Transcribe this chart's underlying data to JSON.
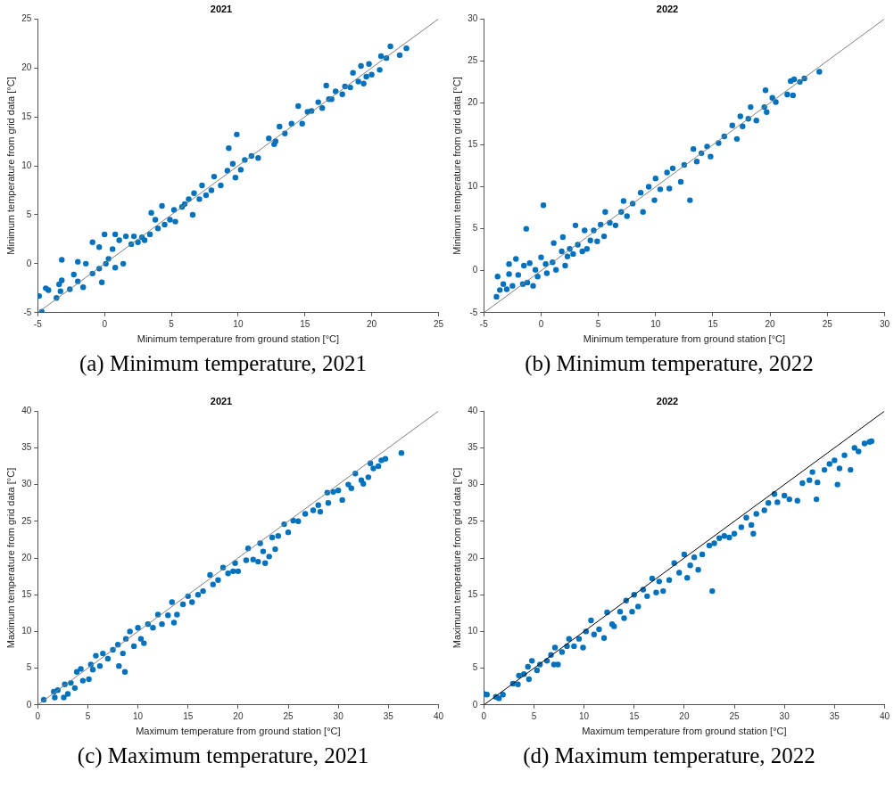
{
  "chart_data": [
    {
      "type": "scatter",
      "title": "2021",
      "xlabel": "Minimum temperature from ground station [°C]",
      "ylabel": "Minimum temperature from grid data [°C]",
      "annotations": [
        "(a) Minimum temperature, 2021"
      ],
      "xlim": [
        -5,
        25
      ],
      "ylim": [
        -5,
        25
      ],
      "xticks": [
        -5,
        0,
        5,
        10,
        15,
        20,
        25
      ],
      "yticks": [
        -5,
        0,
        5,
        10,
        15,
        20,
        25
      ],
      "grid": false,
      "legend": false,
      "series": [
        {
          "marker": "circle",
          "color": "#0072bd",
          "x": [
            -4.9,
            -4.7,
            -4.4,
            -4.2,
            -3.6,
            -3.4,
            -3.2,
            -3.2,
            -3.3,
            -2.6,
            -2.3,
            -2.0,
            -2.0,
            -1.6,
            -1.4,
            -0.9,
            -0.9,
            -0.4,
            -0.4,
            -0.2,
            0.0,
            0.1,
            0.3,
            0.6,
            0.8,
            0.8,
            1.1,
            1.4,
            1.6,
            2.0,
            2.2,
            2.5,
            3.0,
            3.4,
            3.5,
            3.8,
            4.0,
            4.3,
            4.5,
            4.9,
            5.2,
            5.3,
            5.8,
            6.3,
            6.6,
            6.7,
            7.1,
            7.3,
            7.6,
            8.0,
            8.2,
            8.7,
            9.2,
            9.3,
            9.6,
            9.8,
            9.9,
            10.2,
            10.5,
            11.0,
            11.5,
            12.3,
            12.7,
            13.1,
            13.5,
            14.0,
            14.5,
            14.8,
            15.2,
            15.5,
            16.0,
            16.3,
            16.6,
            16.8,
            17.3,
            17.8,
            18.4,
            18.6,
            19.0,
            19.2,
            19.4,
            19.8,
            20.0,
            20.6,
            20.7,
            21.1,
            21.4,
            22.1,
            22.6,
            18.0,
            17.0,
            6.0,
            2.8,
            12.8,
            19.6
          ],
          "values": [
            -3.3,
            -4.9,
            -2.5,
            -2.7,
            -3.5,
            -2.1,
            -1.7,
            0.4,
            -2.8,
            -2.6,
            -1.1,
            0.2,
            -1.8,
            -2.4,
            0.0,
            -1.0,
            2.2,
            -0.5,
            1.7,
            -1.9,
            3.0,
            0.0,
            0.5,
            1.5,
            3.0,
            -0.4,
            2.4,
            0.0,
            2.8,
            2.0,
            2.8,
            2.2,
            2.4,
            3.0,
            5.2,
            4.5,
            3.6,
            5.9,
            4.0,
            4.5,
            5.5,
            4.3,
            5.8,
            6.6,
            5.0,
            7.2,
            6.6,
            8.0,
            7.0,
            7.5,
            8.9,
            8.0,
            9.5,
            11.8,
            10.2,
            8.8,
            13.2,
            9.6,
            10.6,
            11.0,
            10.8,
            12.8,
            12.2,
            14.0,
            13.3,
            14.3,
            16.1,
            14.3,
            15.5,
            15.6,
            16.5,
            15.9,
            18.2,
            16.8,
            17.6,
            17.3,
            18.0,
            19.5,
            18.6,
            20.2,
            18.4,
            20.4,
            19.3,
            19.8,
            21.2,
            21.0,
            22.2,
            21.3,
            22.0,
            18.1,
            16.8,
            6.1,
            2.7,
            12.5,
            19.1
          ]
        },
        {
          "type": "line",
          "marker": "none",
          "color": "#808080",
          "x": [
            -5,
            25
          ],
          "values": [
            -5,
            25
          ]
        }
      ]
    },
    {
      "type": "scatter",
      "title": "2022",
      "xlabel": "Minimum temperature from ground station [°C]",
      "ylabel": "Minimum temperature from grid data [°C]",
      "annotations": [
        "(b) Minimum temperature, 2022"
      ],
      "xlim": [
        -5,
        30
      ],
      "ylim": [
        -5,
        30
      ],
      "xticks": [
        -5,
        0,
        5,
        10,
        15,
        20,
        25,
        30
      ],
      "yticks": [
        -5,
        0,
        5,
        10,
        15,
        20,
        25,
        30
      ],
      "grid": false,
      "legend": false,
      "series": [
        {
          "marker": "circle",
          "color": "#0072bd",
          "x": [
            -3.9,
            -3.8,
            -3.6,
            -3.3,
            -3.0,
            -2.8,
            -2.8,
            -2.5,
            -2.2,
            -2.0,
            -1.6,
            -1.5,
            -1.3,
            -1.2,
            -1.0,
            -0.7,
            -0.5,
            -0.3,
            0.0,
            0.2,
            0.4,
            0.5,
            1.0,
            1.1,
            1.3,
            1.8,
            1.9,
            2.1,
            2.3,
            2.5,
            2.8,
            3.0,
            3.2,
            3.6,
            3.8,
            4.0,
            4.3,
            4.6,
            4.9,
            5.2,
            5.5,
            5.6,
            6.0,
            6.5,
            7.0,
            7.2,
            7.5,
            8.0,
            8.7,
            8.9,
            9.4,
            9.9,
            10.0,
            10.4,
            11.0,
            11.2,
            11.5,
            12.2,
            12.5,
            13.0,
            13.3,
            13.6,
            14.0,
            14.5,
            14.8,
            15.5,
            16.0,
            16.7,
            17.1,
            17.4,
            17.6,
            18.1,
            18.3,
            18.8,
            19.5,
            19.7,
            20.2,
            20.5,
            21.5,
            21.8,
            22.0,
            22.1,
            22.6,
            23.0,
            24.3,
            19.6
          ],
          "values": [
            -3.1,
            -0.7,
            -2.3,
            -1.6,
            -2.2,
            0.8,
            -0.4,
            -1.8,
            1.4,
            -0.5,
            -1.6,
            0.6,
            5.0,
            -1.4,
            0.9,
            -1.8,
            0.1,
            -0.7,
            1.6,
            7.8,
            0.8,
            -0.3,
            1.0,
            3.3,
            0.1,
            2.3,
            4.0,
            0.6,
            1.7,
            2.6,
            2.0,
            5.4,
            3.1,
            2.3,
            4.8,
            2.6,
            3.6,
            4.8,
            3.5,
            5.5,
            4.1,
            7.0,
            5.7,
            5.4,
            7.0,
            8.3,
            6.5,
            8.0,
            9.3,
            7.0,
            10.0,
            8.4,
            11.0,
            9.7,
            11.7,
            9.8,
            12.2,
            10.6,
            12.6,
            8.4,
            14.5,
            13.0,
            14.0,
            14.8,
            13.6,
            15.2,
            16.0,
            17.3,
            15.7,
            18.4,
            17.2,
            18.1,
            19.5,
            17.9,
            19.5,
            18.9,
            20.6,
            20.1,
            21.0,
            22.6,
            20.9,
            22.8,
            22.5,
            22.9,
            23.7,
            21.5
          ]
        },
        {
          "type": "line",
          "marker": "none",
          "color": "#808080",
          "x": [
            -5,
            30
          ],
          "values": [
            -5,
            30
          ]
        }
      ]
    },
    {
      "type": "scatter",
      "title": "2021",
      "xlabel": "Maximum temperature from ground station [°C]",
      "ylabel": "Maximum temperature from grid data [°C]",
      "annotations": [
        "(c) Maximum temperature, 2021"
      ],
      "xlim": [
        0,
        40
      ],
      "ylim": [
        0,
        40
      ],
      "xticks": [
        0,
        5,
        10,
        15,
        20,
        25,
        30,
        35,
        40
      ],
      "yticks": [
        0,
        5,
        10,
        15,
        20,
        25,
        30,
        35,
        40
      ],
      "grid": false,
      "legend": false,
      "series": [
        {
          "marker": "circle",
          "color": "#0072bd",
          "x": [
            0.6,
            1.6,
            1.7,
            2.0,
            2.6,
            2.7,
            3.0,
            3.3,
            3.7,
            3.9,
            4.3,
            4.5,
            5.1,
            5.3,
            5.5,
            5.8,
            6.2,
            6.5,
            7.0,
            7.5,
            8.0,
            8.1,
            8.5,
            8.7,
            8.8,
            9.2,
            9.6,
            10.0,
            10.3,
            10.6,
            11.0,
            11.5,
            12.0,
            12.4,
            13.0,
            13.4,
            13.6,
            13.9,
            14.5,
            15.0,
            15.4,
            16.0,
            16.5,
            17.2,
            17.5,
            18.0,
            18.5,
            19.0,
            19.5,
            19.7,
            20.0,
            20.8,
            21.0,
            21.5,
            22.0,
            22.2,
            22.5,
            22.7,
            23.1,
            23.4,
            23.7,
            24.0,
            24.6,
            25.0,
            25.5,
            26.0,
            26.7,
            27.5,
            28.0,
            28.2,
            28.9,
            29.0,
            29.5,
            30.0,
            30.4,
            31.0,
            31.3,
            31.7,
            32.3,
            32.5,
            33.0,
            33.2,
            33.5,
            34.0,
            34.3,
            34.7,
            36.3
          ],
          "values": [
            0.7,
            1.8,
            1.0,
            2.0,
            1.0,
            2.8,
            1.5,
            3.0,
            2.3,
            4.5,
            4.9,
            3.3,
            3.5,
            5.5,
            4.8,
            6.7,
            5.3,
            7.0,
            6.3,
            7.5,
            8.2,
            5.3,
            7.0,
            4.5,
            9.0,
            10.0,
            8.0,
            10.5,
            9.0,
            8.4,
            11.0,
            10.5,
            12.3,
            11.0,
            12.2,
            14.0,
            11.2,
            12.3,
            13.7,
            14.8,
            14.0,
            15.0,
            15.5,
            17.7,
            16.4,
            17.0,
            18.7,
            17.9,
            18.2,
            19.3,
            18.2,
            19.7,
            21.3,
            19.8,
            19.5,
            22.0,
            20.9,
            19.3,
            20.2,
            22.8,
            21.2,
            23.0,
            24.6,
            23.5,
            25.1,
            25.0,
            26.0,
            26.5,
            27.2,
            26.3,
            28.9,
            27.5,
            29.0,
            29.2,
            27.9,
            30.0,
            29.5,
            31.5,
            30.6,
            30.1,
            31.0,
            32.9,
            32.2,
            32.5,
            33.3,
            33.5,
            34.3
          ]
        },
        {
          "type": "line",
          "marker": "none",
          "color": "#808080",
          "x": [
            0,
            40
          ],
          "values": [
            0,
            40
          ]
        }
      ]
    },
    {
      "type": "scatter",
      "title": "2022",
      "xlabel": "Maximum temperature from ground station [°C]",
      "ylabel": "Maximum temperature from grid data [°C]",
      "annotations": [
        "(d) Maximum temperature, 2022"
      ],
      "xlim": [
        0,
        40
      ],
      "ylim": [
        0,
        40
      ],
      "xticks": [
        0,
        5,
        10,
        15,
        20,
        25,
        30,
        35,
        40
      ],
      "yticks": [
        0,
        5,
        10,
        15,
        20,
        25,
        30,
        35,
        40
      ],
      "grid": false,
      "legend": false,
      "series": [
        {
          "marker": "circle",
          "color": "#0072bd",
          "x": [
            0.0,
            0.3,
            1.2,
            1.5,
            1.9,
            2.9,
            3.4,
            3.5,
            4.0,
            4.4,
            4.5,
            4.8,
            5.3,
            5.6,
            6.3,
            6.7,
            7.0,
            7.1,
            7.4,
            7.8,
            8.3,
            8.5,
            9.0,
            9.5,
            9.9,
            10.2,
            10.7,
            11.0,
            11.5,
            12.0,
            12.3,
            12.8,
            13.0,
            13.6,
            14.0,
            14.2,
            14.8,
            15.0,
            15.4,
            15.9,
            16.3,
            16.8,
            17.2,
            17.5,
            17.9,
            18.5,
            19.0,
            19.5,
            20.0,
            20.3,
            20.6,
            21.0,
            21.4,
            21.8,
            22.5,
            22.8,
            23.0,
            23.5,
            24.0,
            24.5,
            25.0,
            25.7,
            26.2,
            26.7,
            26.9,
            27.2,
            28.0,
            28.4,
            29.0,
            29.3,
            30.0,
            30.5,
            31.3,
            31.8,
            32.5,
            32.8,
            33.2,
            33.3,
            34.0,
            34.5,
            35.0,
            35.3,
            35.5,
            36.0,
            36.6,
            37.0,
            37.4,
            38.0,
            38.5,
            38.7
          ],
          "values": [
            1.5,
            1.4,
            1.1,
            0.9,
            1.4,
            2.9,
            2.8,
            4.0,
            4.2,
            5.2,
            3.5,
            6.0,
            4.7,
            5.5,
            6.0,
            6.8,
            5.5,
            7.8,
            5.5,
            7.2,
            8.0,
            9.0,
            8.0,
            9.0,
            7.8,
            10.0,
            11.5,
            9.6,
            10.3,
            9.1,
            12.6,
            11.0,
            10.7,
            12.7,
            11.8,
            14.2,
            12.7,
            15.0,
            13.4,
            15.7,
            14.8,
            17.2,
            15.3,
            16.8,
            15.5,
            17.0,
            19.3,
            18.0,
            20.5,
            17.3,
            19.0,
            20.1,
            18.4,
            20.5,
            21.7,
            15.5,
            22.0,
            22.7,
            23.0,
            22.8,
            23.3,
            24.2,
            25.5,
            24.5,
            23.3,
            26.0,
            26.5,
            27.5,
            28.7,
            27.6,
            28.5,
            28.0,
            27.8,
            30.2,
            30.6,
            31.7,
            28.0,
            30.3,
            32.0,
            32.8,
            33.3,
            30.0,
            32.2,
            34.0,
            32.0,
            35.0,
            34.5,
            35.6,
            35.8,
            35.9
          ]
        },
        {
          "type": "line",
          "marker": "none",
          "color": "#000000",
          "x": [
            0,
            40
          ],
          "values": [
            0,
            40
          ]
        }
      ]
    }
  ]
}
